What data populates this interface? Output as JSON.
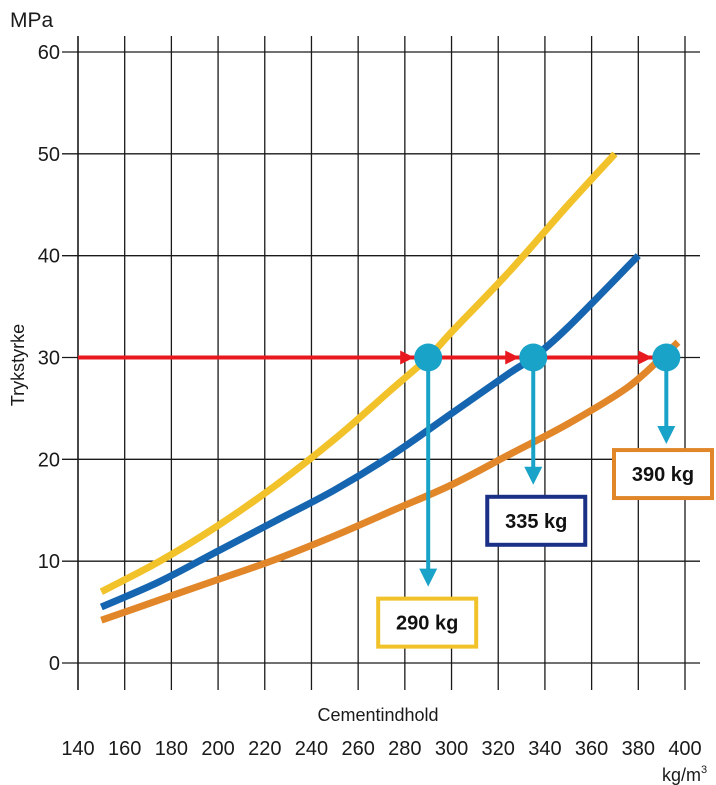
{
  "chart_data": {
    "type": "line",
    "y_unit": "MPa",
    "ylabel": "Trykstyrke",
    "xlabel": "Cementindhold",
    "x_unit_base": "kg/m",
    "x_unit_sup": "3",
    "xlim": [
      140,
      400
    ],
    "ylim": [
      0,
      60
    ],
    "x_ticks": [
      140,
      160,
      180,
      200,
      220,
      240,
      260,
      280,
      300,
      320,
      340,
      360,
      380,
      400
    ],
    "y_ticks": [
      0,
      10,
      20,
      30,
      40,
      50,
      60
    ],
    "grid": true,
    "series": [
      {
        "color": "#f2c22a",
        "x": [
          150,
          175,
          200,
          225,
          250,
          275,
          290,
          300,
          325,
          350,
          370
        ],
        "y": [
          7,
          10,
          13.5,
          17.5,
          22,
          27,
          30,
          32.5,
          38.5,
          45,
          50
        ]
      },
      {
        "color": "#1565b0",
        "x": [
          150,
          175,
          200,
          225,
          250,
          275,
          300,
          325,
          335,
          350,
          380
        ],
        "y": [
          5.5,
          8,
          11,
          14,
          17,
          20.5,
          24.5,
          28.5,
          30,
          33,
          40
        ]
      },
      {
        "color": "#e1872a",
        "x": [
          150,
          175,
          200,
          225,
          250,
          275,
          300,
          325,
          350,
          375,
          390,
          397
        ],
        "y": [
          4.2,
          6.2,
          8.2,
          10.2,
          12.5,
          15,
          17.5,
          20.5,
          23.5,
          27,
          30,
          31.5
        ]
      }
    ],
    "reference": {
      "y": 30,
      "x_from": 140,
      "x_to": 390,
      "color": "#e8181f"
    },
    "markers": [
      {
        "x": 290,
        "y": 30,
        "drop_to_y": 7.5,
        "label": "290 kg",
        "box_color": "#f2c22a"
      },
      {
        "x": 335,
        "y": 30,
        "drop_to_y": 17.5,
        "label": "335 kg",
        "box_color": "#1a2f86"
      },
      {
        "x": 392,
        "y": 30,
        "drop_to_y": 21.5,
        "label": "390 kg",
        "box_color": "#e1872a"
      }
    ],
    "marker_color": "#1aa3c8"
  }
}
